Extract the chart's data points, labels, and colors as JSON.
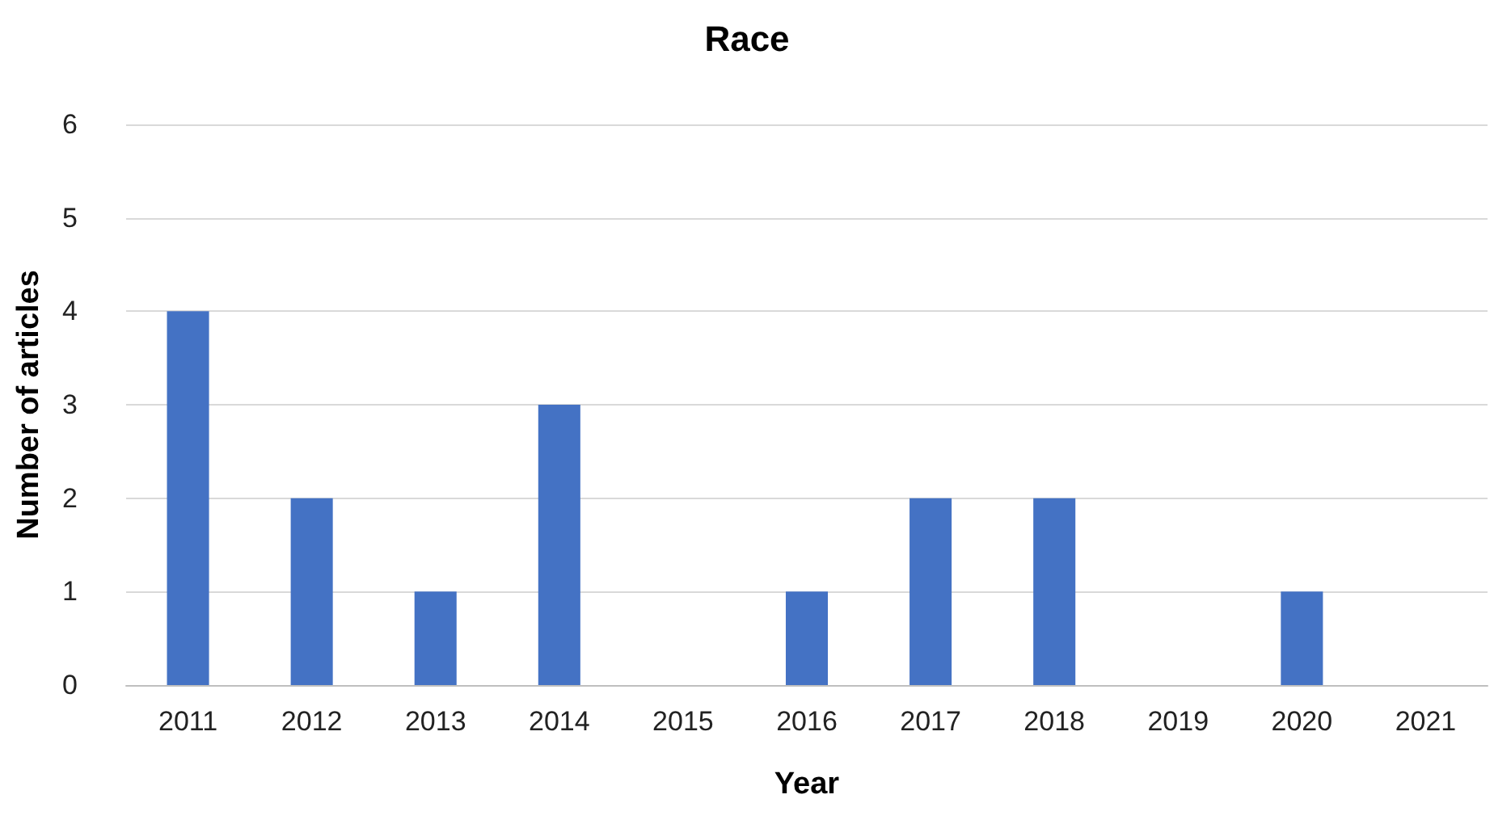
{
  "chart_data": {
    "type": "bar",
    "title": "Race",
    "xlabel": "Year",
    "ylabel": "Number of articles",
    "categories": [
      "2011",
      "2012",
      "2013",
      "2014",
      "2015",
      "2016",
      "2017",
      "2018",
      "2019",
      "2020",
      "2021"
    ],
    "values": [
      4,
      2,
      1,
      3,
      0,
      1,
      2,
      2,
      0,
      1,
      0
    ],
    "color": "#4472c4",
    "ylim": [
      0,
      6
    ],
    "yticks": [
      0,
      1,
      2,
      3,
      4,
      5,
      6
    ],
    "grid": "y"
  }
}
